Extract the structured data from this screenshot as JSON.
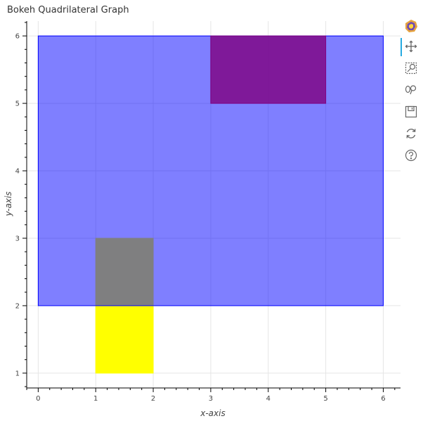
{
  "chart_data": {
    "type": "quad",
    "title": "Bokeh Quadrilateral Graph",
    "xlabel": "x-axis",
    "ylabel": "y-axis",
    "xlim": [
      -0.2,
      6.3
    ],
    "ylim": [
      0.78,
      6.22
    ],
    "x_ticks": [
      0,
      1,
      2,
      3,
      4,
      5,
      6
    ],
    "y_ticks": [
      1,
      2,
      3,
      4,
      5,
      6
    ],
    "grid": true,
    "quads": [
      {
        "left": 1,
        "right": 2,
        "bottom": 1,
        "top": 3,
        "color": "#ffff00",
        "opacity": 1.0,
        "line_color": "#ffff00"
      },
      {
        "left": 0,
        "right": 6,
        "bottom": 2,
        "top": 6,
        "color": "#0000ff",
        "opacity": 0.5,
        "line_color": "#0000ff"
      },
      {
        "left": 3,
        "right": 5,
        "bottom": 5,
        "top": 6,
        "color": "#800080",
        "opacity": 0.8,
        "line_color": "#800080"
      }
    ]
  },
  "toolbar": {
    "tools": [
      {
        "name": "bokeh-logo-icon"
      },
      {
        "name": "pan-icon"
      },
      {
        "name": "box-zoom-icon"
      },
      {
        "name": "wheel-zoom-icon"
      },
      {
        "name": "save-icon"
      },
      {
        "name": "reset-icon"
      },
      {
        "name": "help-icon"
      }
    ]
  }
}
